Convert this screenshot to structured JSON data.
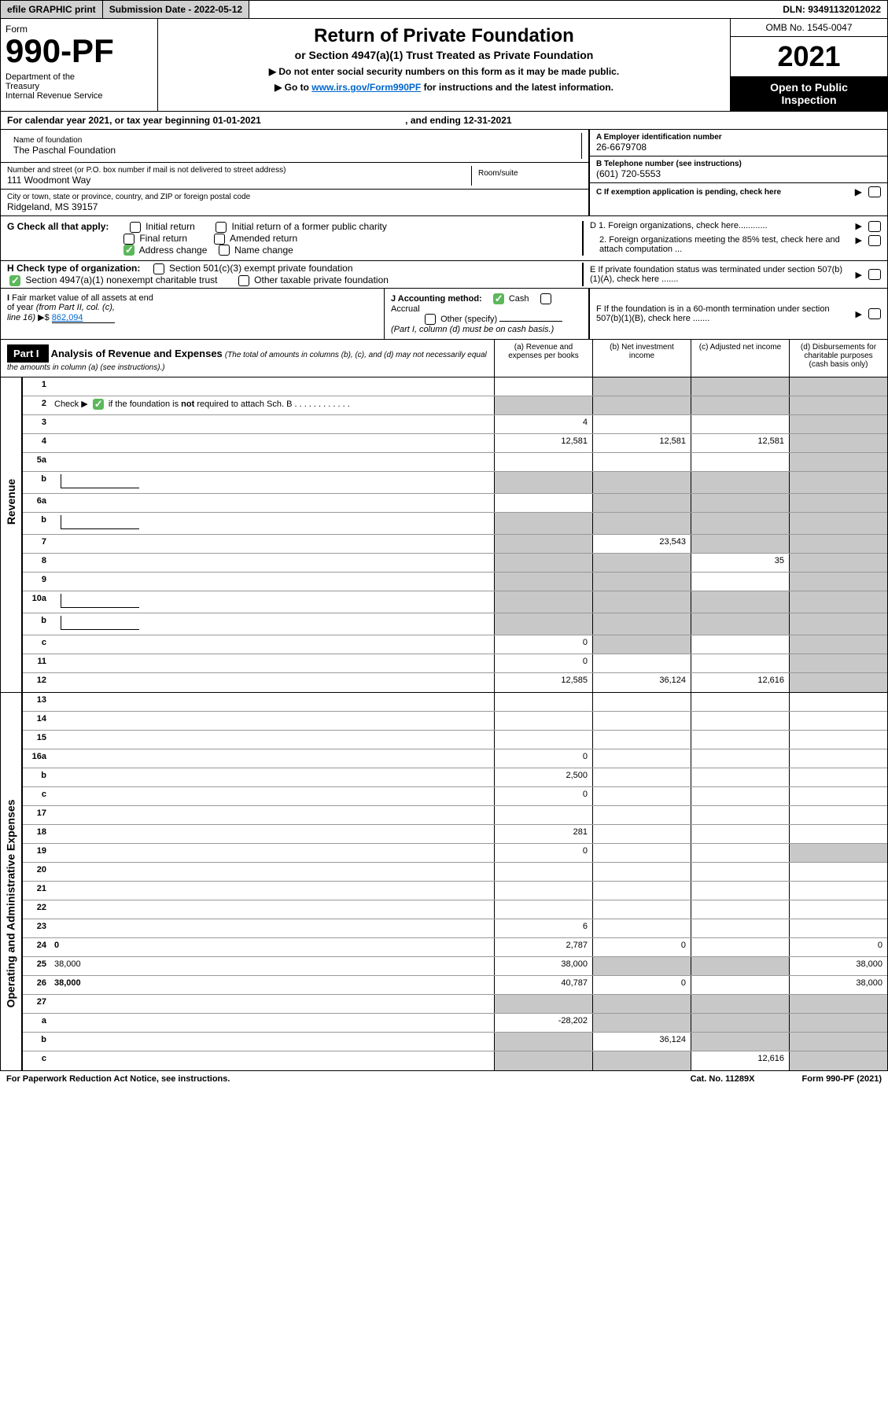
{
  "topbar": {
    "efile": "efile GRAPHIC print",
    "subdate_label": "Submission Date - ",
    "subdate_val": "2022-05-12",
    "dln_label": "DLN: ",
    "dln_val": "93491132012022"
  },
  "header": {
    "form_word": "Form",
    "form_num": "990-PF",
    "dept": "Department of the Treasury\nInternal Revenue Service",
    "title": "Return of Private Foundation",
    "subtitle": "or Section 4947(a)(1) Trust Treated as Private Foundation",
    "note1": "▶ Do not enter social security numbers on this form as it may be made public.",
    "note2_pre": "▶ Go to ",
    "note2_link": "www.irs.gov/Form990PF",
    "note2_post": " for instructions and the latest information.",
    "omb": "OMB No. 1545-0047",
    "year": "2021",
    "open": "Open to Public Inspection"
  },
  "calyear": {
    "text": "For calendar year 2021, or tax year beginning 01-01-2021",
    "end": ", and ending 12-31-2021"
  },
  "info": {
    "name_label": "Name of foundation",
    "name": "The Paschal Foundation",
    "addr_label": "Number and street (or P.O. box number if mail is not delivered to street address)",
    "addr": "111 Woodmont Way",
    "room_label": "Room/suite",
    "city_label": "City or town, state or province, country, and ZIP or foreign postal code",
    "city": "Ridgeland, MS  39157",
    "a_label": "A Employer identification number",
    "a_val": "26-6679708",
    "b_label": "B Telephone number (see instructions)",
    "b_val": "(601) 720-5553",
    "c_label": "C If exemption application is pending, check here"
  },
  "g": {
    "label": "G Check all that apply:",
    "opts": [
      "Initial return",
      "Initial return of a former public charity",
      "Final return",
      "Amended return",
      "Address change",
      "Name change"
    ],
    "checked": [
      false,
      false,
      false,
      false,
      true,
      false
    ]
  },
  "d": {
    "d1": "D 1. Foreign organizations, check here............",
    "d2": "2. Foreign organizations meeting the 85% test, check here and attach computation ..."
  },
  "h": {
    "label": "H Check type of organization:",
    "opt1": "Section 501(c)(3) exempt private foundation",
    "opt2": "Section 4947(a)(1) nonexempt charitable trust",
    "opt3": "Other taxable private foundation",
    "checked": [
      false,
      true,
      false
    ]
  },
  "e": {
    "text": "E If private foundation status was terminated under section 507(b)(1)(A), check here ......."
  },
  "i": {
    "label": "I Fair market value of all assets at end of year (from Part II, col. (c), line 16) ▶$ ",
    "val": "862,094"
  },
  "j": {
    "label": "J Accounting method:",
    "cash": "Cash",
    "accrual": "Accrual",
    "other": "Other (specify)",
    "note": "(Part I, column (d) must be on cash basis.)",
    "checked_cash": true
  },
  "f": {
    "text": "F If the foundation is in a 60-month termination under section 507(b)(1)(B), check here ......."
  },
  "part1": {
    "label": "Part I",
    "title": "Analysis of Revenue and Expenses",
    "note": "(The total of amounts in columns (b), (c), and (d) may not necessarily equal the amounts in column (a) (see instructions).)",
    "col_a": "(a) Revenue and expenses per books",
    "col_b": "(b) Net investment income",
    "col_c": "(c) Adjusted net income",
    "col_d": "(d) Disbursements for charitable purposes (cash basis only)"
  },
  "sidebars": {
    "revenue": "Revenue",
    "expenses": "Operating and Administrative Expenses"
  },
  "rows": [
    {
      "n": "1",
      "d": "",
      "a": "",
      "b": "",
      "c": "",
      "grey": [
        false,
        true,
        true,
        true
      ]
    },
    {
      "n": "2",
      "d": "",
      "a": "",
      "b": "",
      "c": "",
      "grey": [
        true,
        true,
        true,
        true
      ],
      "special": "check"
    },
    {
      "n": "3",
      "d": "",
      "a": "4",
      "b": "",
      "c": "",
      "grey": [
        false,
        false,
        false,
        true
      ]
    },
    {
      "n": "4",
      "d": "",
      "a": "12,581",
      "b": "12,581",
      "c": "12,581",
      "grey": [
        false,
        false,
        false,
        true
      ]
    },
    {
      "n": "5a",
      "d": "",
      "a": "",
      "b": "",
      "c": "",
      "grey": [
        false,
        false,
        false,
        true
      ]
    },
    {
      "n": "b",
      "d": "",
      "a": "",
      "b": "",
      "c": "",
      "grey": [
        true,
        true,
        true,
        true
      ],
      "inline": true
    },
    {
      "n": "6a",
      "d": "",
      "a": "",
      "b": "",
      "c": "",
      "grey": [
        false,
        true,
        true,
        true
      ]
    },
    {
      "n": "b",
      "d": "",
      "a": "",
      "b": "",
      "c": "",
      "grey": [
        true,
        true,
        true,
        true
      ],
      "inline": true
    },
    {
      "n": "7",
      "d": "",
      "a": "",
      "b": "23,543",
      "c": "",
      "grey": [
        true,
        false,
        true,
        true
      ]
    },
    {
      "n": "8",
      "d": "",
      "a": "",
      "b": "",
      "c": "35",
      "grey": [
        true,
        true,
        false,
        true
      ]
    },
    {
      "n": "9",
      "d": "",
      "a": "",
      "b": "",
      "c": "",
      "grey": [
        true,
        true,
        false,
        true
      ]
    },
    {
      "n": "10a",
      "d": "",
      "a": "",
      "b": "",
      "c": "",
      "grey": [
        true,
        true,
        true,
        true
      ],
      "inline": true
    },
    {
      "n": "b",
      "d": "",
      "a": "",
      "b": "",
      "c": "",
      "grey": [
        true,
        true,
        true,
        true
      ],
      "inline": true
    },
    {
      "n": "c",
      "d": "",
      "a": "0",
      "b": "",
      "c": "",
      "grey": [
        false,
        true,
        false,
        true
      ]
    },
    {
      "n": "11",
      "d": "",
      "a": "0",
      "b": "",
      "c": "",
      "grey": [
        false,
        false,
        false,
        true
      ]
    },
    {
      "n": "12",
      "d": "",
      "a": "12,585",
      "b": "36,124",
      "c": "12,616",
      "grey": [
        false,
        false,
        false,
        true
      ],
      "bold": true
    }
  ],
  "exp_rows": [
    {
      "n": "13",
      "d": "",
      "a": "",
      "b": "",
      "c": ""
    },
    {
      "n": "14",
      "d": "",
      "a": "",
      "b": "",
      "c": ""
    },
    {
      "n": "15",
      "d": "",
      "a": "",
      "b": "",
      "c": ""
    },
    {
      "n": "16a",
      "d": "",
      "a": "0",
      "b": "",
      "c": ""
    },
    {
      "n": "b",
      "d": "",
      "a": "2,500",
      "b": "",
      "c": ""
    },
    {
      "n": "c",
      "d": "",
      "a": "0",
      "b": "",
      "c": ""
    },
    {
      "n": "17",
      "d": "",
      "a": "",
      "b": "",
      "c": ""
    },
    {
      "n": "18",
      "d": "",
      "a": "281",
      "b": "",
      "c": ""
    },
    {
      "n": "19",
      "d": "",
      "a": "0",
      "b": "",
      "c": "",
      "grey_d": true
    },
    {
      "n": "20",
      "d": "",
      "a": "",
      "b": "",
      "c": ""
    },
    {
      "n": "21",
      "d": "",
      "a": "",
      "b": "",
      "c": ""
    },
    {
      "n": "22",
      "d": "",
      "a": "",
      "b": "",
      "c": ""
    },
    {
      "n": "23",
      "d": "",
      "a": "6",
      "b": "",
      "c": ""
    },
    {
      "n": "24",
      "d": "0",
      "a": "2,787",
      "b": "0",
      "c": "",
      "bold": true
    },
    {
      "n": "25",
      "d": "38,000",
      "a": "38,000",
      "b": "",
      "c": "",
      "grey_bc": true
    },
    {
      "n": "26",
      "d": "38,000",
      "a": "40,787",
      "b": "0",
      "c": "",
      "bold": true
    },
    {
      "n": "27",
      "d": "",
      "a": "",
      "b": "",
      "c": "",
      "grey_all": true
    },
    {
      "n": "a",
      "d": "",
      "a": "-28,202",
      "b": "",
      "c": "",
      "bold": true,
      "grey_bcd": true
    },
    {
      "n": "b",
      "d": "",
      "a": "",
      "b": "36,124",
      "c": "",
      "bold": true,
      "grey_acd": true
    },
    {
      "n": "c",
      "d": "",
      "a": "",
      "b": "",
      "c": "12,616",
      "bold": true,
      "grey_abd": true
    }
  ],
  "footer": {
    "left": "For Paperwork Reduction Act Notice, see instructions.",
    "mid": "Cat. No. 11289X",
    "right": "Form 990-PF (2021)"
  },
  "colors": {
    "grey_bg": "#c8c8c8",
    "link": "#0066cc",
    "green": "#5cb85c"
  }
}
